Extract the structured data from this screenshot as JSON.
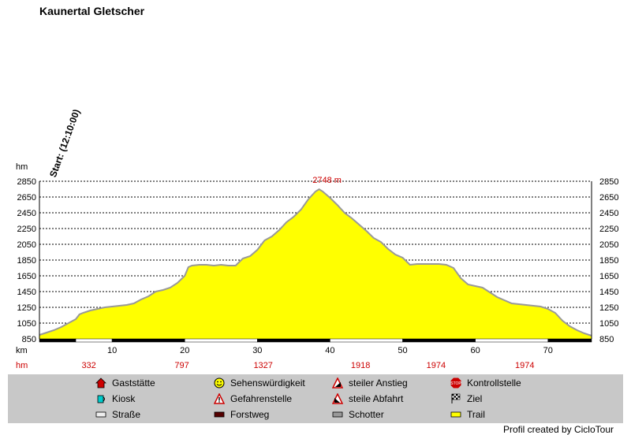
{
  "chart_data": {
    "type": "area",
    "title": "Kaunertal Gletscher",
    "start_annotation": "Start: (12:10:00)",
    "y_unit": "hm",
    "x_unit": "km",
    "xlim": [
      0,
      76
    ],
    "ylim": [
      850,
      2850
    ],
    "y_ticks": [
      850,
      1050,
      1250,
      1450,
      1650,
      1850,
      2050,
      2250,
      2450,
      2650,
      2850
    ],
    "x_ticks": [
      10,
      20,
      30,
      40,
      50,
      60,
      70
    ],
    "grid": true,
    "fill_color": "#ffff00",
    "line_color": "#999999",
    "peak_label": "2748 m",
    "peak": {
      "x": 38.5,
      "y": 2748
    },
    "x": [
      0,
      1,
      2,
      3,
      4,
      5,
      5.5,
      6,
      7,
      8,
      9,
      10,
      11,
      12,
      13,
      14,
      15,
      16,
      17,
      18,
      19,
      20,
      20.5,
      21,
      22,
      23,
      24,
      25,
      26,
      27,
      28,
      29,
      30,
      31,
      32,
      33,
      34,
      35,
      36,
      37,
      38,
      38.5,
      39,
      40,
      41,
      42,
      43,
      44,
      45,
      46,
      47,
      48,
      49,
      50,
      51,
      52,
      53,
      54,
      55,
      56,
      57,
      58,
      59,
      60,
      61,
      62,
      63,
      64,
      65,
      66,
      67,
      68,
      69,
      70,
      71,
      72,
      73,
      74,
      75,
      76
    ],
    "y": [
      900,
      930,
      960,
      1000,
      1050,
      1100,
      1160,
      1180,
      1210,
      1230,
      1250,
      1260,
      1270,
      1280,
      1300,
      1350,
      1390,
      1450,
      1470,
      1500,
      1560,
      1650,
      1760,
      1780,
      1790,
      1790,
      1780,
      1790,
      1780,
      1780,
      1870,
      1900,
      1980,
      2100,
      2150,
      2230,
      2330,
      2400,
      2490,
      2620,
      2720,
      2748,
      2720,
      2640,
      2550,
      2450,
      2380,
      2300,
      2220,
      2130,
      2080,
      1990,
      1920,
      1880,
      1790,
      1800,
      1800,
      1800,
      1800,
      1790,
      1750,
      1620,
      1540,
      1520,
      1500,
      1440,
      1380,
      1340,
      1300,
      1290,
      1280,
      1270,
      1260,
      1230,
      1180,
      1080,
      1010,
      960,
      920,
      890
    ],
    "segments": [
      {
        "from": 0,
        "to": 5,
        "type": "dark"
      },
      {
        "from": 5,
        "to": 10,
        "type": "light"
      },
      {
        "from": 10,
        "to": 20,
        "type": "dark"
      },
      {
        "from": 20,
        "to": 30,
        "type": "light"
      },
      {
        "from": 30,
        "to": 40,
        "type": "dark"
      },
      {
        "from": 40,
        "to": 50,
        "type": "light"
      },
      {
        "from": 50,
        "to": 60,
        "type": "dark"
      },
      {
        "from": 60,
        "to": 70,
        "type": "light"
      },
      {
        "from": 70,
        "to": 76,
        "type": "dark"
      }
    ],
    "cumulative_labels": [
      {
        "x": 6.8,
        "text": "332"
      },
      {
        "x": 19.6,
        "text": "797"
      },
      {
        "x": 30.8,
        "text": "1327"
      },
      {
        "x": 44.2,
        "text": "1918"
      },
      {
        "x": 54.6,
        "text": "1974"
      },
      {
        "x": 66.8,
        "text": "1974"
      }
    ],
    "cumulative_label_unit": "hm"
  },
  "legend": [
    {
      "label": "Gaststätte",
      "icon": "house-icon",
      "color": "#cc0000"
    },
    {
      "label": "Sehenswürdigkeit",
      "icon": "smiley-icon",
      "color": "#ffff00"
    },
    {
      "label": "steiler Anstieg",
      "icon": "steep-ascent-icon",
      "color": "#cc0000"
    },
    {
      "label": "Kontrollstelle",
      "icon": "stop-sign-icon",
      "color": "#cc0000"
    },
    {
      "label": "Kiosk",
      "icon": "cup-icon",
      "color": "#00cccc"
    },
    {
      "label": "Gefahrenstelle",
      "icon": "warning-icon",
      "color": "#cc0000"
    },
    {
      "label": "steile Abfahrt",
      "icon": "steep-descent-icon",
      "color": "#cc0000"
    },
    {
      "label": "Ziel",
      "icon": "checkered-flag-icon",
      "color": "#000000"
    },
    {
      "label": "Straße",
      "icon": "road-swatch-icon",
      "color": "#eeeeee"
    },
    {
      "label": "Forstweg",
      "icon": "forest-road-swatch-icon",
      "color": "#550000"
    },
    {
      "label": "Schotter",
      "icon": "gravel-swatch-icon",
      "color": "#999999"
    },
    {
      "label": "Trail",
      "icon": "trail-swatch-icon",
      "color": "#ffff00"
    }
  ],
  "footer": "Profil created by CicloTour"
}
